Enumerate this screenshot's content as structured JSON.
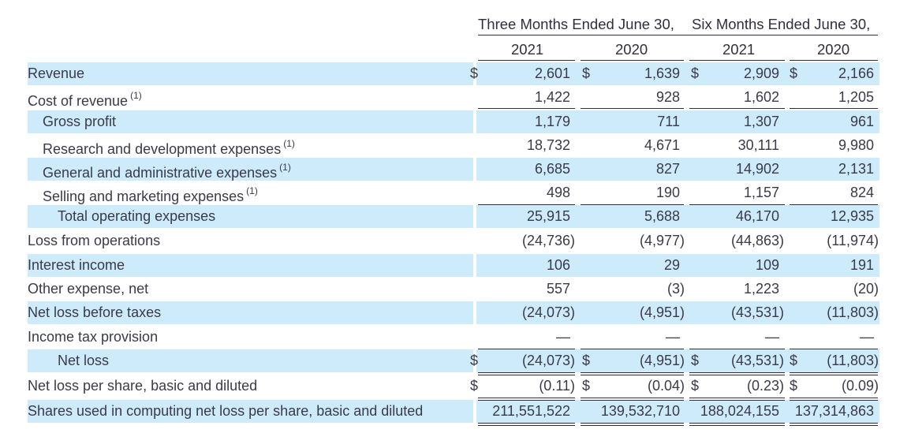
{
  "headers": {
    "period1": "Three Months Ended June 30,",
    "period2": "Six Months Ended June 30,",
    "years": [
      "2021",
      "2020",
      "2021",
      "2020"
    ]
  },
  "rows": [
    {
      "label": "Revenue",
      "sup": "",
      "values": [
        "2,601",
        "1,639",
        "2,909",
        "2,166"
      ],
      "dollar": true
    },
    {
      "label": "Cost of revenue",
      "sup": "(1)",
      "values": [
        "1,422",
        "928",
        "1,602",
        "1,205"
      ],
      "dollar": false
    },
    {
      "label": "Gross profit",
      "sup": "",
      "values": [
        "1,179",
        "711",
        "1,307",
        "961"
      ],
      "dollar": false
    },
    {
      "label": "Research and development expenses",
      "sup": "(1)",
      "values": [
        "18,732",
        "4,671",
        "30,111",
        "9,980"
      ],
      "dollar": false
    },
    {
      "label": "General and administrative expenses",
      "sup": "(1)",
      "values": [
        "6,685",
        "827",
        "14,902",
        "2,131"
      ],
      "dollar": false
    },
    {
      "label": "Selling and marketing expenses",
      "sup": "(1)",
      "values": [
        "498",
        "190",
        "1,157",
        "824"
      ],
      "dollar": false
    },
    {
      "label": "Total operating expenses",
      "sup": "",
      "values": [
        "25,915",
        "5,688",
        "46,170",
        "12,935"
      ],
      "dollar": false
    },
    {
      "label": "Loss from operations",
      "sup": "",
      "values": [
        "(24,736)",
        "(4,977)",
        "(44,863)",
        "(11,974)"
      ],
      "dollar": false
    },
    {
      "label": "Interest income",
      "sup": "",
      "values": [
        "106",
        "29",
        "109",
        "191"
      ],
      "dollar": false
    },
    {
      "label": "Other expense, net",
      "sup": "",
      "values": [
        "557",
        "(3)",
        "1,223",
        "(20)"
      ],
      "dollar": false
    },
    {
      "label": "Net loss before taxes",
      "sup": "",
      "values": [
        "(24,073)",
        "(4,951)",
        "(43,531)",
        "(11,803)"
      ],
      "dollar": false
    },
    {
      "label": "Income tax provision",
      "sup": "",
      "values": [
        "—",
        "—",
        "—",
        "—"
      ],
      "dollar": false
    },
    {
      "label": "Net loss",
      "sup": "",
      "values": [
        "(24,073)",
        "(4,951)",
        "(43,531)",
        "(11,803)"
      ],
      "dollar": true
    },
    {
      "label": "Net loss per share, basic and diluted",
      "sup": "",
      "values": [
        "(0.11)",
        "(0.04)",
        "(0.23)",
        "(0.09)"
      ],
      "dollar": true
    },
    {
      "label": "Shares used in computing net loss per share, basic and diluted",
      "sup": "",
      "values": [
        "211,551,522",
        "139,532,710",
        "188,024,155",
        "137,314,863"
      ],
      "dollar": false
    }
  ],
  "currency_symbol": "$",
  "colors": {
    "row_highlight": "#cdebfb",
    "text": "#3a3a4a"
  }
}
